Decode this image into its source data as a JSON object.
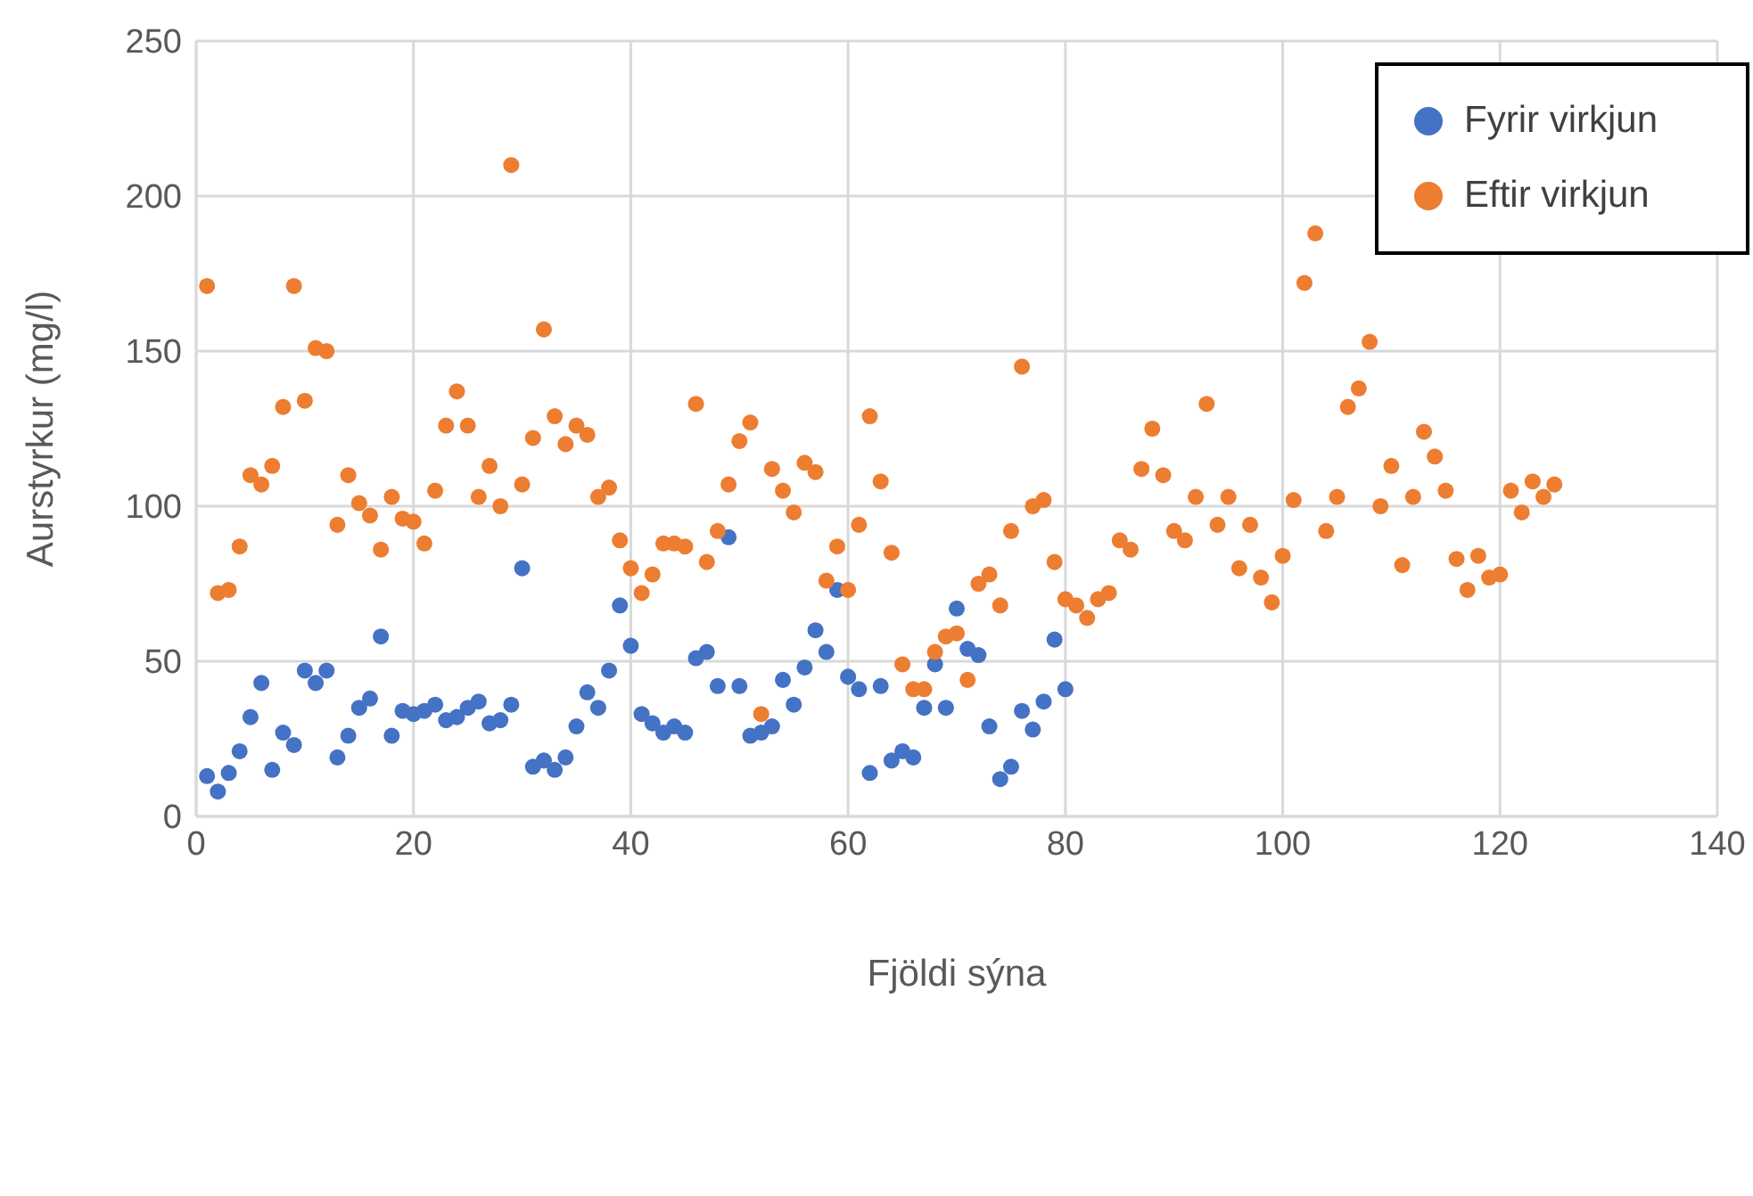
{
  "chart_data": {
    "type": "scatter",
    "xlabel": "Fjöldi sýna",
    "ylabel": "Aurstyrkur (mg/l)",
    "xlim": [
      0,
      140
    ],
    "xticks": [
      0,
      20,
      40,
      60,
      80,
      100,
      120,
      140
    ],
    "ylim": [
      0,
      250
    ],
    "yticks": [
      0,
      50,
      100,
      150,
      200,
      250
    ],
    "grid": true,
    "legend": "top right",
    "marker": "circle",
    "series": [
      {
        "name": "Fyrir virkjun",
        "color": "#4472c4",
        "x": [
          1,
          2,
          3,
          4,
          5,
          6,
          7,
          8,
          9,
          10,
          11,
          12,
          13,
          14,
          15,
          16,
          17,
          18,
          19,
          20,
          21,
          22,
          23,
          24,
          25,
          26,
          27,
          28,
          29,
          30,
          31,
          32,
          33,
          34,
          35,
          36,
          37,
          38,
          39,
          40,
          41,
          42,
          43,
          44,
          45,
          46,
          47,
          48,
          49,
          50,
          51,
          52,
          53,
          54,
          55,
          56,
          57,
          58,
          59,
          60,
          61,
          62,
          63,
          64,
          65,
          66,
          67,
          68,
          69,
          70,
          71,
          72,
          73,
          74,
          75,
          76,
          77,
          78,
          79,
          80
        ],
        "values": [
          13,
          8,
          14,
          21,
          32,
          43,
          15,
          27,
          23,
          47,
          43,
          47,
          19,
          26,
          35,
          38,
          58,
          26,
          34,
          33,
          34,
          36,
          31,
          32,
          35,
          37,
          30,
          31,
          36,
          80,
          16,
          18,
          15,
          19,
          29,
          40,
          35,
          47,
          68,
          55,
          33,
          30,
          27,
          29,
          27,
          51,
          53,
          42,
          90,
          42,
          26,
          27,
          29,
          44,
          36,
          48,
          60,
          53,
          73,
          45,
          41,
          14,
          42,
          18,
          21,
          19,
          35,
          49,
          35,
          67,
          54,
          52,
          29,
          12,
          16,
          34,
          28,
          37,
          57,
          41
        ]
      },
      {
        "name": "Eftir virkjun",
        "color": "#ed7d31",
        "x": [
          1,
          2,
          3,
          4,
          5,
          6,
          7,
          8,
          9,
          10,
          11,
          12,
          13,
          14,
          15,
          16,
          17,
          18,
          19,
          20,
          21,
          22,
          23,
          24,
          25,
          26,
          27,
          28,
          29,
          30,
          31,
          32,
          33,
          34,
          35,
          36,
          37,
          38,
          39,
          40,
          41,
          42,
          43,
          44,
          45,
          46,
          47,
          48,
          49,
          50,
          51,
          52,
          53,
          54,
          55,
          56,
          57,
          58,
          59,
          60,
          61,
          62,
          63,
          64,
          65,
          66,
          67,
          68,
          69,
          70,
          71,
          72,
          73,
          74,
          75,
          76,
          77,
          78,
          79,
          80,
          81,
          82,
          83,
          84,
          85,
          86,
          87,
          88,
          89,
          90,
          91,
          92,
          93,
          94,
          95,
          96,
          97,
          98,
          99,
          100,
          101,
          102,
          103,
          104,
          105,
          106,
          107,
          108,
          109,
          110,
          111,
          112,
          113,
          114,
          115,
          116,
          117,
          118,
          119,
          120,
          121,
          122,
          123,
          124,
          125
        ],
        "values": [
          171,
          72,
          73,
          87,
          110,
          107,
          113,
          132,
          171,
          134,
          151,
          150,
          94,
          110,
          101,
          97,
          86,
          103,
          96,
          95,
          88,
          105,
          126,
          137,
          126,
          103,
          113,
          100,
          210,
          107,
          122,
          157,
          129,
          120,
          126,
          123,
          103,
          106,
          89,
          80,
          72,
          78,
          88,
          88,
          87,
          133,
          82,
          92,
          107,
          121,
          127,
          33,
          112,
          105,
          98,
          114,
          111,
          76,
          87,
          73,
          94,
          129,
          108,
          85,
          49,
          41,
          41,
          53,
          58,
          59,
          44,
          75,
          78,
          68,
          92,
          145,
          100,
          102,
          82,
          70,
          68,
          64,
          70,
          72,
          89,
          86,
          112,
          125,
          110,
          92,
          89,
          103,
          133,
          94,
          103,
          80,
          94,
          77,
          69,
          84,
          102,
          172,
          188,
          92,
          103,
          132,
          138,
          153,
          100,
          113,
          81,
          103,
          124,
          116,
          105,
          83,
          73,
          84,
          77,
          78,
          105,
          98,
          108,
          103,
          107
        ]
      }
    ]
  }
}
